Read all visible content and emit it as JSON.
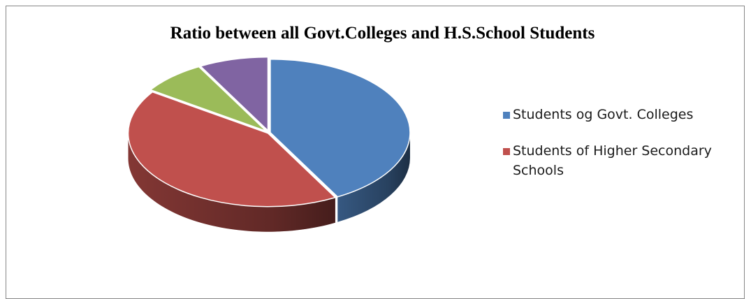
{
  "chart_data": {
    "type": "pie",
    "style": "3d",
    "title": "Ratio between all Govt.Colleges and H.S.School Students",
    "slices": [
      {
        "name": "Students og Govt. Colleges",
        "value": 42.0,
        "color": "#4F81BD",
        "in_legend": true
      },
      {
        "name": "Students of Higher Secondary Schools",
        "value": 42.5,
        "color": "#C0504D",
        "in_legend": true
      },
      {
        "name": "",
        "value": 7.5,
        "color": "#9BBB59",
        "in_legend": false
      },
      {
        "name": "",
        "value": 8.0,
        "color": "#8064A2",
        "in_legend": false
      }
    ],
    "legend": {
      "placement": "right",
      "entries": [
        "Students og Govt. Colleges",
        "Students of Higher Secondary Schools"
      ]
    }
  }
}
